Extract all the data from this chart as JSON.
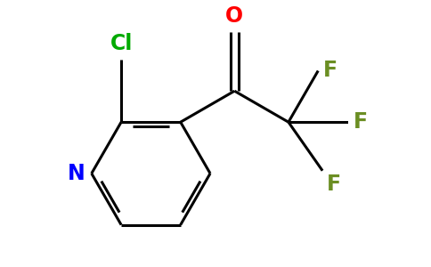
{
  "background_color": "#ffffff",
  "atom_colors": {
    "N": "#0000FF",
    "O": "#FF0000",
    "Cl": "#00AA00",
    "F": "#6B8E23",
    "C": "#000000"
  },
  "bond_color": "#000000",
  "bond_width": 2.2,
  "figsize": [
    4.84,
    3.0
  ],
  "dpi": 100,
  "font_size": 17
}
